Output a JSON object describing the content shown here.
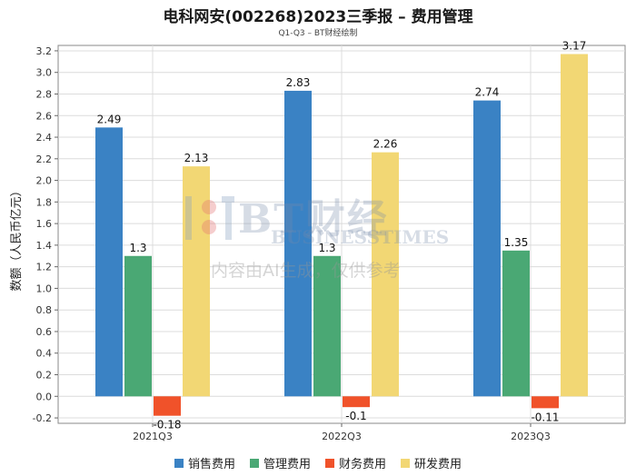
{
  "chart_data": {
    "type": "bar",
    "title": "电科网安(002268)2023三季报 – 费用管理",
    "subtitle": "Q1-Q3 – BT财经绘制",
    "ylabel": "数额（人民币亿元）",
    "xlabel": "",
    "categories": [
      "2021Q3",
      "2022Q3",
      "2023Q3"
    ],
    "ylim": [
      -0.25,
      3.25
    ],
    "yticks": [
      -0.2,
      0.0,
      0.2,
      0.4,
      0.6,
      0.8,
      1.0,
      1.2,
      1.4,
      1.6,
      1.8,
      2.0,
      2.2,
      2.4,
      2.6,
      2.8,
      3.0,
      3.2
    ],
    "ytick_labels": [
      "-0.2",
      "0.0",
      "0.2",
      "0.4",
      "0.6",
      "0.8",
      "1.0",
      "1.2",
      "1.4",
      "1.6",
      "1.8",
      "2.0",
      "2.2",
      "2.4",
      "2.6",
      "2.8",
      "3.0",
      "3.2"
    ],
    "grid": true,
    "legend_position": "bottom",
    "series": [
      {
        "name": "销售费用",
        "color": "#3a82c4",
        "values": [
          2.49,
          2.83,
          2.74
        ],
        "labels": [
          "2.49",
          "2.83",
          "2.74"
        ]
      },
      {
        "name": "管理费用",
        "color": "#4aa874",
        "values": [
          1.3,
          1.3,
          1.35
        ],
        "labels": [
          "1.3",
          "1.3",
          "1.35"
        ]
      },
      {
        "name": "财务费用",
        "color": "#f0522a",
        "values": [
          -0.18,
          -0.1,
          -0.11
        ],
        "labels": [
          "-0.18",
          "-0.1",
          "-0.11"
        ]
      },
      {
        "name": "研发费用",
        "color": "#f2d774",
        "values": [
          2.13,
          2.26,
          3.17
        ],
        "labels": [
          "2.13",
          "2.26",
          "3.17"
        ]
      }
    ]
  },
  "watermark": {
    "brand": "BT财经",
    "brand_en": "BUSINESSTIMES",
    "notice": "内容由AI生成，仅供参考"
  }
}
